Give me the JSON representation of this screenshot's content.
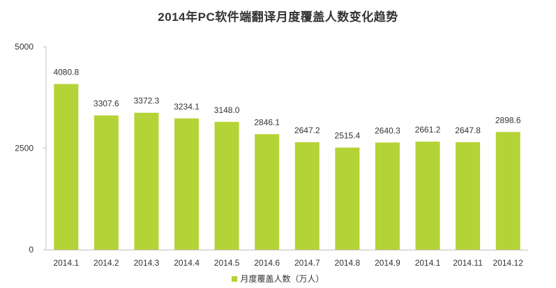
{
  "chart_data": {
    "type": "bar",
    "title": "2014年PC软件端翻译月度覆盖人数变化趋势",
    "categories": [
      "2014.1",
      "2014.2",
      "2014.3",
      "2014.4",
      "2014.5",
      "2014.6",
      "2014.7",
      "2014.8",
      "2014.9",
      "2014.1",
      "2014.11",
      "2014.12"
    ],
    "series": [
      {
        "name": "月度覆盖人数（万人）",
        "values": [
          4080.8,
          3307.6,
          3372.3,
          3234.1,
          3148.0,
          2846.1,
          2647.2,
          2515.4,
          2640.3,
          2661.2,
          2647.8,
          2898.6
        ],
        "labels": [
          "4080.8",
          "3307.6",
          "3372.3",
          "3234.1",
          "3148.0",
          "2846.1",
          "2647.2",
          "2515.4",
          "2640.3",
          "2661.2",
          "2647.8",
          "2898.6"
        ],
        "color": "#b4d336"
      }
    ],
    "ylim": [
      0,
      5000
    ],
    "yticks": [
      "0",
      "2500",
      "5000"
    ],
    "grid": false,
    "legend_position": "bottom",
    "axis_color": "#bfbfbf"
  }
}
